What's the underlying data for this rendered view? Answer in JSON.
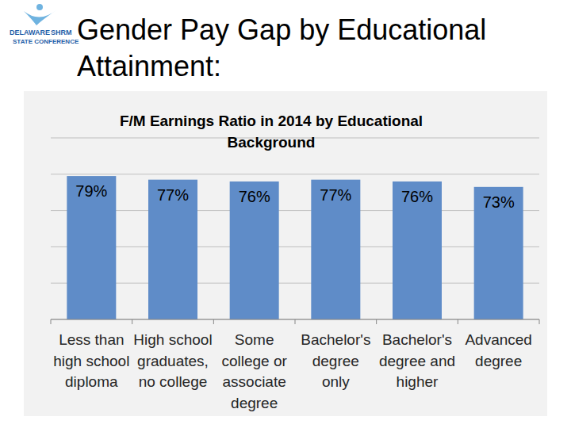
{
  "slide": {
    "title": "Gender Pay Gap by Educational\nAttainment:",
    "logo_text": [
      "DELAWARE",
      "SHRM",
      "STATE CONFERENCE"
    ]
  },
  "chart_data": {
    "type": "bar",
    "title": "F/M Earnings Ratio in 2014 by Educational\nBackground",
    "categories": [
      "Less than\nhigh school\ndiploma",
      "High school\ngraduates,\nno college",
      "Some\ncollege or\nassociate\ndegree",
      "Bachelor's\ndegree\nonly",
      "Bachelor's\ndegree and\nhigher",
      "Advanced\ndegree"
    ],
    "values": [
      79,
      77,
      76,
      77,
      76,
      73
    ],
    "value_labels": [
      "79%",
      "77%",
      "76%",
      "77%",
      "76%",
      "73%"
    ],
    "color": "#5f8cc8",
    "ylim": [
      0,
      100
    ],
    "yticks": [
      0,
      20,
      40,
      60,
      80,
      100
    ],
    "grid": true,
    "data_labels": true,
    "tick_labels": false
  }
}
